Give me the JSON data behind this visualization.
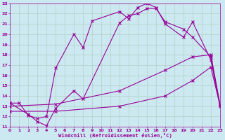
{
  "xlabel": "Windchill (Refroidissement éolien,°C)",
  "bg_color": "#cce8f0",
  "line_color": "#990099",
  "grid_color": "#aaddcc",
  "xmin": 0,
  "xmax": 23,
  "ymin": 11,
  "ymax": 23,
  "line1_x": [
    0,
    1,
    2,
    3,
    4,
    5,
    7,
    8,
    9,
    12,
    13,
    14,
    15,
    16,
    17,
    19,
    20,
    22,
    23
  ],
  "line1_y": [
    13.3,
    13.3,
    12.1,
    11.8,
    12.0,
    16.7,
    20.0,
    18.7,
    21.3,
    22.2,
    21.5,
    22.6,
    23.0,
    22.6,
    21.0,
    19.7,
    21.2,
    17.5,
    13.0
  ],
  "line2_x": [
    0,
    2,
    3,
    4,
    5,
    7,
    8,
    12,
    13,
    14,
    15,
    16,
    17,
    19,
    20,
    22,
    23
  ],
  "line2_y": [
    13.3,
    12.2,
    11.5,
    11.1,
    12.8,
    14.5,
    13.7,
    21.1,
    21.8,
    22.0,
    22.5,
    22.5,
    21.2,
    20.5,
    19.7,
    17.8,
    13.1
  ],
  "line3_x": [
    0,
    5,
    12,
    17,
    20,
    22,
    23
  ],
  "line3_y": [
    13.0,
    13.2,
    14.5,
    16.5,
    17.8,
    18.0,
    13.2
  ],
  "line4_x": [
    0,
    5,
    12,
    17,
    20,
    22,
    23
  ],
  "line4_y": [
    12.5,
    12.5,
    13.0,
    14.0,
    15.5,
    16.8,
    13.1
  ]
}
